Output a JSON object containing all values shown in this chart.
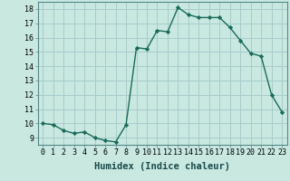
{
  "x": [
    0,
    1,
    2,
    3,
    4,
    5,
    6,
    7,
    8,
    9,
    10,
    11,
    12,
    13,
    14,
    15,
    16,
    17,
    18,
    19,
    20,
    21,
    22,
    23
  ],
  "y": [
    10.0,
    9.9,
    9.5,
    9.3,
    9.4,
    9.0,
    8.8,
    8.7,
    9.9,
    15.3,
    15.2,
    16.5,
    16.4,
    18.1,
    17.6,
    17.4,
    17.4,
    17.4,
    16.7,
    15.8,
    14.9,
    14.7,
    12.0,
    10.8
  ],
  "xlabel": "Humidex (Indice chaleur)",
  "xlim": [
    -0.5,
    23.5
  ],
  "ylim": [
    8.5,
    18.5
  ],
  "yticks": [
    9,
    10,
    11,
    12,
    13,
    14,
    15,
    16,
    17,
    18
  ],
  "xticks": [
    0,
    1,
    2,
    3,
    4,
    5,
    6,
    7,
    8,
    9,
    10,
    11,
    12,
    13,
    14,
    15,
    16,
    17,
    18,
    19,
    20,
    21,
    22,
    23
  ],
  "line_color": "#1a6b5a",
  "bg_color": "#c8e8e0",
  "grid_color": "#a8cccc",
  "tick_fontsize": 6,
  "label_fontsize": 7.5
}
